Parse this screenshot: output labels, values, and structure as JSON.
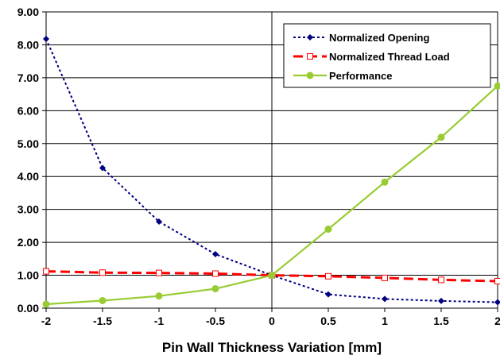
{
  "chart_data": {
    "type": "line",
    "title": "",
    "xlabel": "Pin Wall Thickness Variation [mm]",
    "ylabel": "",
    "xlim": [
      -2,
      2
    ],
    "ylim": [
      0,
      9
    ],
    "x_ticks": [
      -2,
      -1.5,
      -1,
      -0.5,
      0,
      0.5,
      1,
      1.5,
      2
    ],
    "x_tick_labels": [
      "-2",
      "-1.5",
      "-1",
      "-0.5",
      "0",
      "0.5",
      "1",
      "1.5",
      "2"
    ],
    "y_ticks": [
      0,
      1,
      2,
      3,
      4,
      5,
      6,
      7,
      8,
      9
    ],
    "y_tick_labels": [
      "0.00",
      "1.00",
      "2.00",
      "3.00",
      "4.00",
      "5.00",
      "6.00",
      "7.00",
      "8.00",
      "9.00"
    ],
    "grid": "horizontal",
    "legend_position": "top-right",
    "x": [
      -2,
      -1.5,
      -1,
      -0.5,
      0,
      0.5,
      1,
      1.5,
      2
    ],
    "series": [
      {
        "name": "Normalized Opening",
        "values": [
          8.18,
          4.26,
          2.63,
          1.64,
          1.0,
          0.42,
          0.28,
          0.22,
          0.18
        ],
        "color": "#000080",
        "line_style": "dotted",
        "marker": "diamond"
      },
      {
        "name": "Normalized Thread Load",
        "values": [
          1.12,
          1.08,
          1.07,
          1.05,
          1.0,
          0.97,
          0.92,
          0.86,
          0.82
        ],
        "color": "#ff0000",
        "line_style": "dashed",
        "marker": "square-open"
      },
      {
        "name": "Performance",
        "values": [
          0.12,
          0.23,
          0.37,
          0.59,
          1.0,
          2.4,
          3.83,
          5.19,
          6.75
        ],
        "color": "#99cc33",
        "line_style": "solid",
        "marker": "circle"
      }
    ]
  }
}
